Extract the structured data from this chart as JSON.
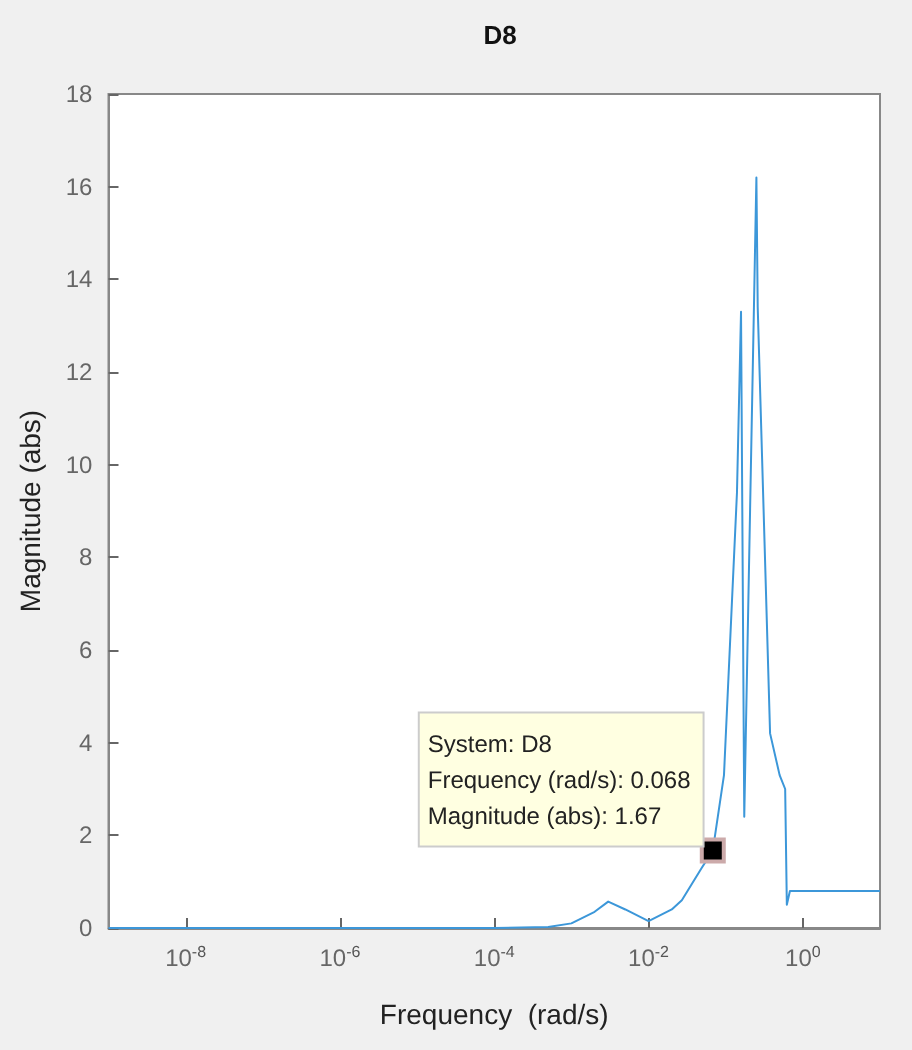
{
  "chart_data": {
    "type": "line",
    "title": "D8",
    "xlabel": "Frequency  (rad/s)",
    "ylabel": "Magnitude (abs)",
    "log": "x",
    "xlim": [
      1e-09,
      10
    ],
    "ylim": [
      0,
      18
    ],
    "xticks": [
      {
        "value": 1e-08,
        "label": "10$^{-8}$"
      },
      {
        "value": 1e-06,
        "label": "10$^{-6}$"
      },
      {
        "value": 0.0001,
        "label": "10$^{-4}$"
      },
      {
        "value": 0.01,
        "label": "10$^{-2}$"
      },
      {
        "value": 1,
        "label": "10$^{0}$"
      }
    ],
    "yticks": [
      0,
      2,
      4,
      6,
      8,
      10,
      12,
      14,
      16,
      18
    ],
    "grid": false,
    "marker": "none",
    "line_style": "solid",
    "x": [
      1e-09,
      1e-06,
      0.0001,
      0.0005,
      0.001,
      0.002,
      0.003,
      0.005,
      0.01,
      0.02,
      0.027,
      0.049,
      0.068,
      0.095,
      0.14,
      0.158,
      0.174,
      0.25,
      0.26,
      0.376,
      0.5,
      0.59,
      0.62,
      0.68,
      10
    ],
    "series": [
      {
        "color": "#3c97d9",
        "values": [
          0,
          0,
          0,
          0.02,
          0.1,
          0.35,
          0.57,
          0.4,
          0.15,
          0.4,
          0.6,
          1.3,
          1.67,
          3.3,
          9.4,
          13.3,
          2.4,
          16.2,
          13.4,
          4.2,
          3.3,
          3.0,
          0.5,
          0.8,
          0.8
        ]
      }
    ],
    "annotations": [
      {
        "text": "System: D8\nFrequency (rad/s): 0.068\nMagnitude (abs): 1.67",
        "x": 0.068,
        "y": 1.67
      }
    ]
  }
}
